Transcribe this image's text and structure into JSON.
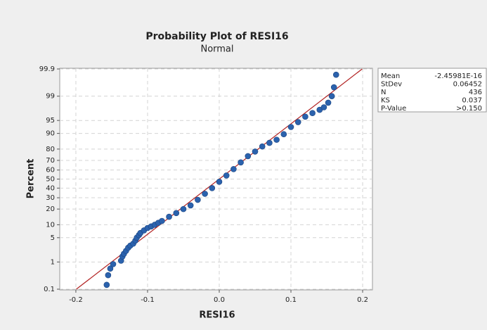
{
  "chart_data": {
    "type": "probability-plot",
    "title": "Probability Plot of RESI16",
    "subtitle": "Normal",
    "xlabel": "RESI16",
    "ylabel": "Percent",
    "yscale": "normal-probability",
    "grid": true,
    "xlim": [
      -0.2225,
      0.2137
    ],
    "xticks": [
      -0.2,
      -0.1,
      0.0,
      0.1,
      0.2
    ],
    "ylim": [
      0.1,
      99.9
    ],
    "yticks": [
      0.1,
      1,
      5,
      10,
      20,
      30,
      40,
      50,
      60,
      70,
      80,
      90,
      95,
      99,
      99.9
    ],
    "point_color": "#2b62ad",
    "line_color": "#b22222",
    "x": [
      -0.157,
      -0.155,
      -0.152,
      -0.148,
      -0.137,
      -0.135,
      -0.133,
      -0.13,
      -0.127,
      -0.124,
      -0.12,
      -0.117,
      -0.115,
      -0.112,
      -0.11,
      -0.105,
      -0.1,
      -0.095,
      -0.09,
      -0.085,
      -0.08,
      -0.07,
      -0.06,
      -0.05,
      -0.04,
      -0.03,
      -0.02,
      -0.01,
      0,
      0.01,
      0.02,
      0.03,
      0.04,
      0.05,
      0.06,
      0.07,
      0.08,
      0.09,
      0.1,
      0.11,
      0.12,
      0.13,
      0.14,
      0.146,
      0.152,
      0.157,
      0.16,
      0.163
    ],
    "values": [
      0.15,
      0.35,
      0.6,
      0.85,
      1.1,
      1.5,
      1.8,
      2.2,
      2.7,
      3.1,
      3.5,
      4.2,
      5,
      5.8,
      6.5,
      7.5,
      8.5,
      9.2,
      10,
      11,
      12,
      14.5,
      17,
      20,
      23,
      28,
      34,
      40,
      47,
      54,
      61,
      68,
      74,
      78,
      82,
      84.5,
      86.5,
      89.6,
      92.8,
      94.5,
      96,
      96.8,
      97.4,
      97.8,
      98.4,
      99,
      99.5,
      99.83
    ],
    "stats": [
      {
        "name": "Mean",
        "value": -2.45981e-16,
        "label": "-2.45981E-16"
      },
      {
        "name": "StDev",
        "value": 0.06452
      },
      {
        "name": "N",
        "value": 436
      },
      {
        "name": "KS",
        "value": 0.037
      },
      {
        "name": "P-Value",
        "label": ">0.150"
      }
    ]
  }
}
